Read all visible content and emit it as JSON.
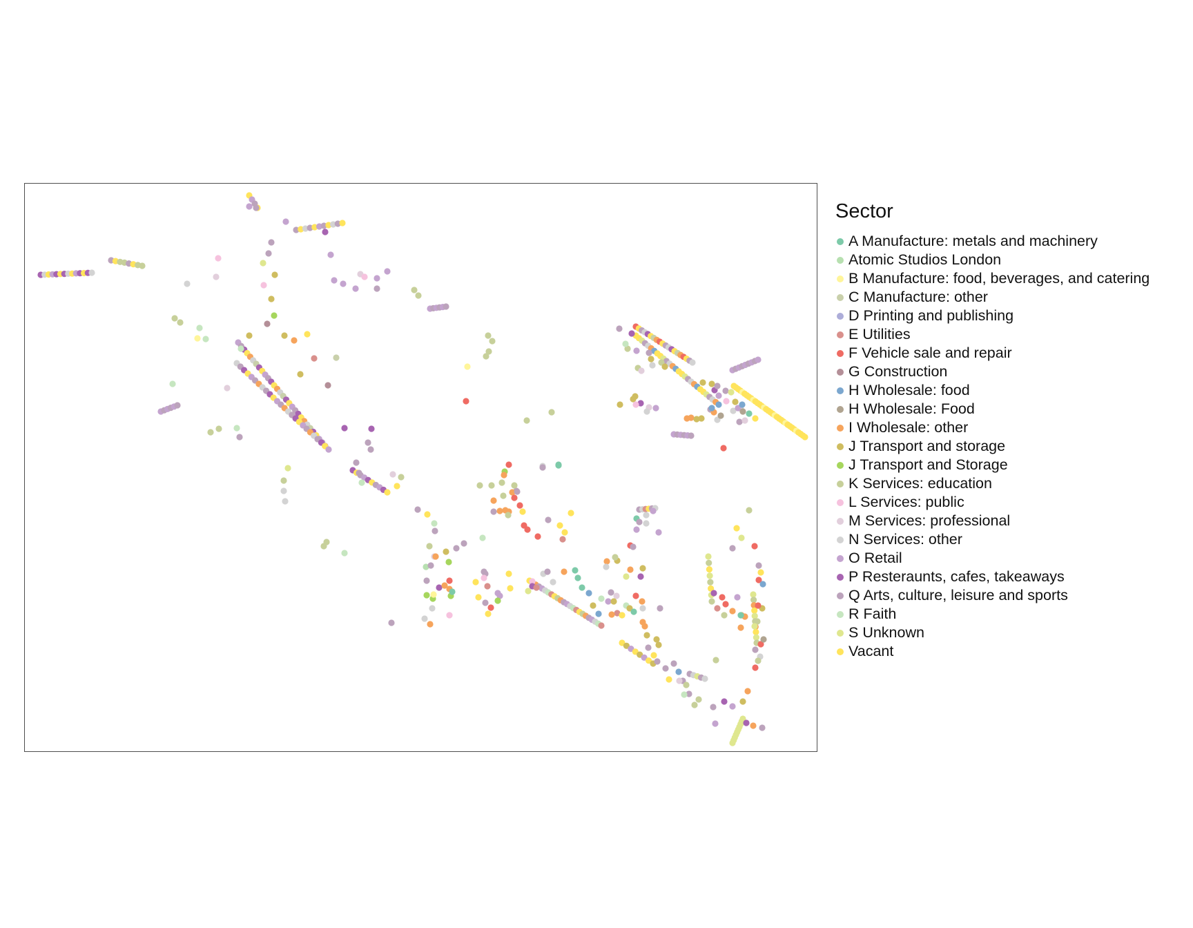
{
  "legend": {
    "title": "Sector",
    "items": [
      {
        "label": "A Manufacture: metals and machinery",
        "color": "#7dcaa9"
      },
      {
        "label": "Atomic Studios London",
        "color": "#b7e0b0"
      },
      {
        "label": "B Manufacture: food, beverages, and catering",
        "color": "#fff59a"
      },
      {
        "label": "C Manufacture: other",
        "color": "#c9d0ab"
      },
      {
        "label": "D Printing and publishing",
        "color": "#adadd9"
      },
      {
        "label": "E Utilities",
        "color": "#d9908c"
      },
      {
        "label": "F Vehicle sale and repair",
        "color": "#ef6b63"
      },
      {
        "label": "G Construction",
        "color": "#b48f98"
      },
      {
        "label": "H Wholesale: food",
        "color": "#7ba7cf"
      },
      {
        "label": "H Wholesale: Food",
        "color": "#b0a490"
      },
      {
        "label": "I Wholesale: other",
        "color": "#f6a45c"
      },
      {
        "label": "J Transport and storage",
        "color": "#cfbd60"
      },
      {
        "label": "J Transport and Storage",
        "color": "#a6d65d"
      },
      {
        "label": "K Services: education",
        "color": "#c7d09a"
      },
      {
        "label": "L Services: public",
        "color": "#f6c2de"
      },
      {
        "label": "M Services: professional",
        "color": "#e2cfdc"
      },
      {
        "label": "N Services: other",
        "color": "#d3d3d3"
      },
      {
        "label": "O Retail",
        "color": "#c4a4cf"
      },
      {
        "label": "P Resteraunts, cafes, takeaways",
        "color": "#a764b1"
      },
      {
        "label": "Q Arts, culture, leisure and sports",
        "color": "#bca3bc"
      },
      {
        "label": "R Faith",
        "color": "#c6e6c0"
      },
      {
        "label": "S Unknown",
        "color": "#dfe78f"
      },
      {
        "label": "Vacant",
        "color": "#ffe45c"
      }
    ]
  }
}
